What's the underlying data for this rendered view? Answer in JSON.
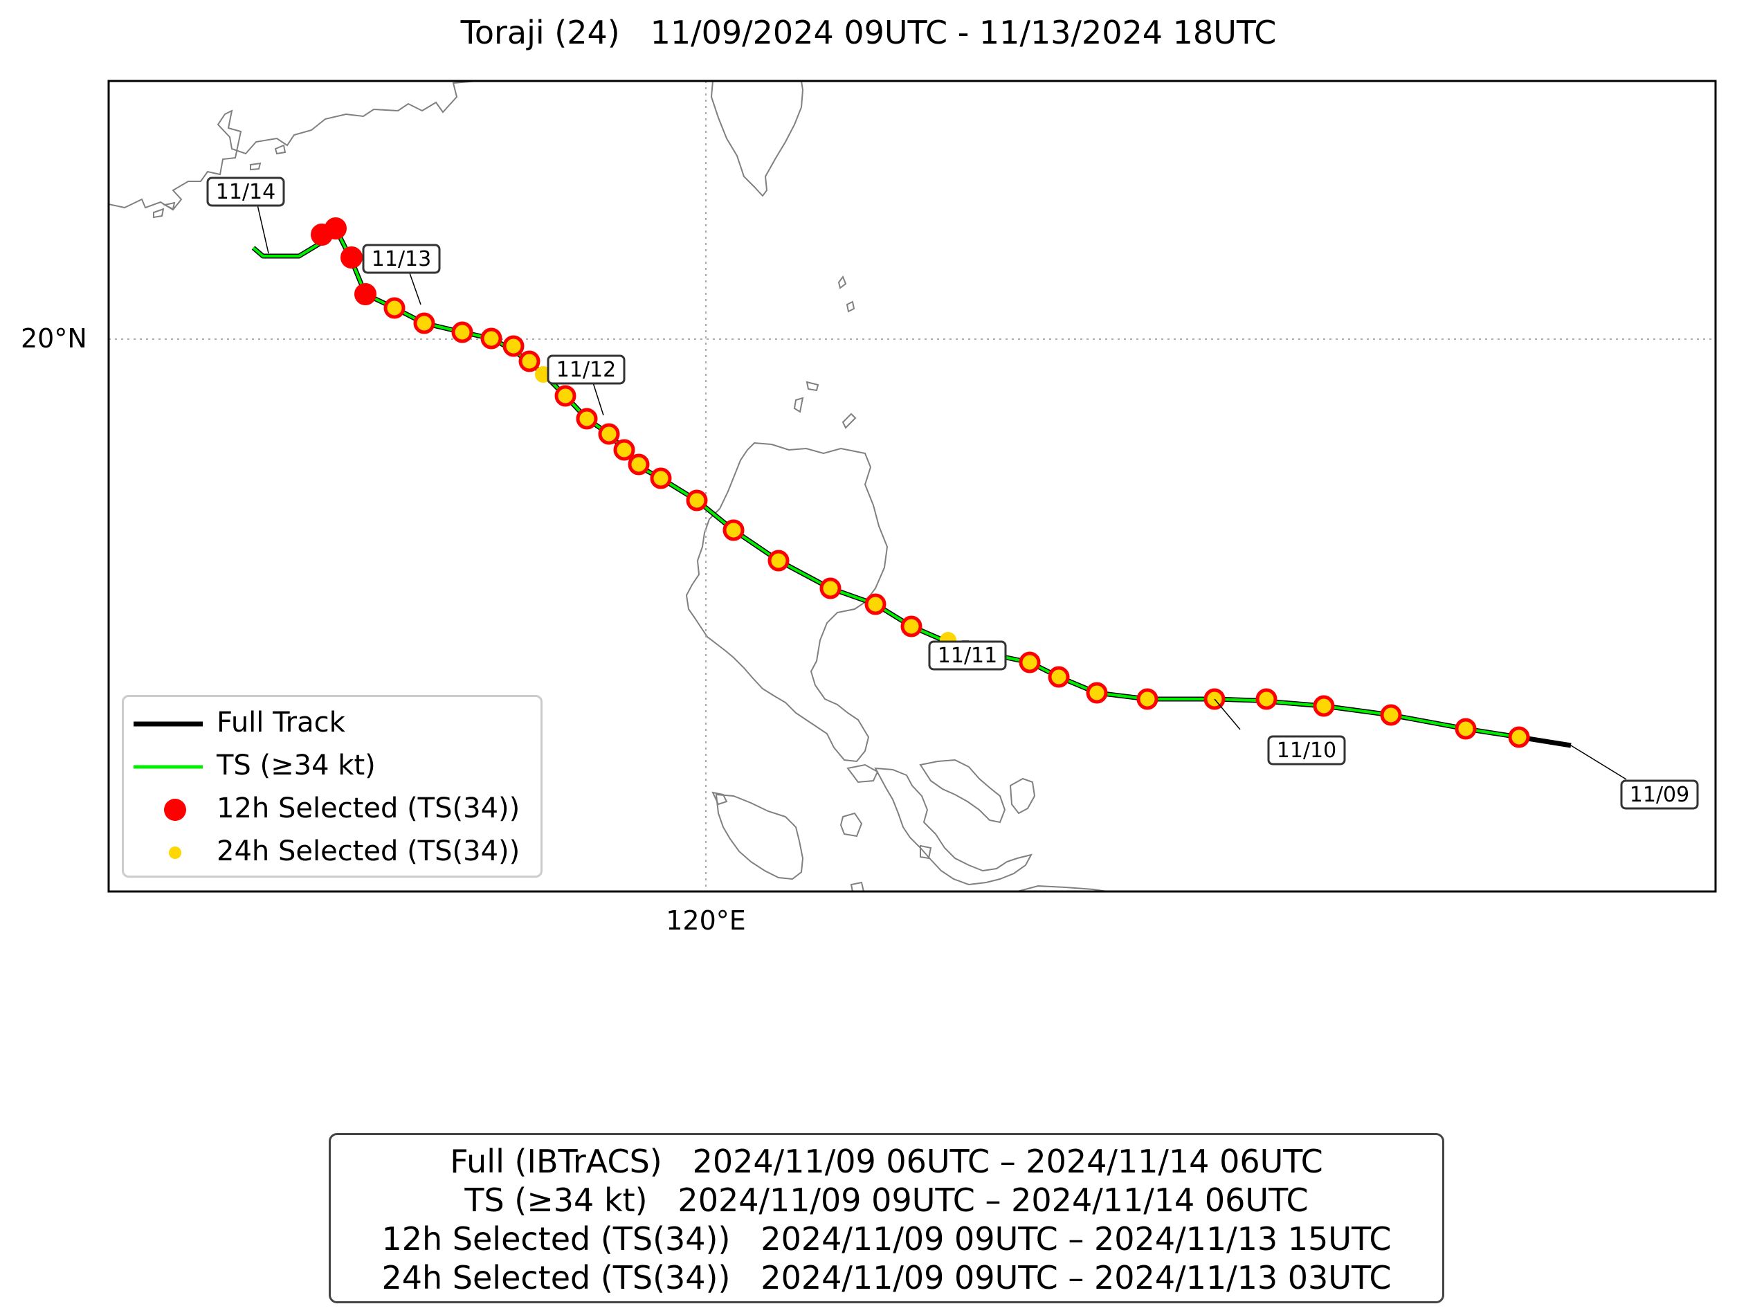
{
  "title": "Toraji (24)   11/09/2024 09UTC - 11/13/2024 18UTC",
  "axes": {
    "lat_label": "20°N",
    "lon_label": "120°E"
  },
  "legend": {
    "full_track": "Full Track",
    "ts": "TS (≥34 kt)",
    "sel12": "12h Selected (TS(34))",
    "sel24": "24h Selected (TS(34))"
  },
  "date_labels": [
    "11/14",
    "11/13",
    "11/12",
    "11/11",
    "11/10",
    "11/09"
  ],
  "summary": [
    "Full (IBTrACS)   2024/11/09 06UTC – 2024/11/14 06UTC",
    "TS (≥34 kt)   2024/11/09 09UTC – 2024/11/14 06UTC",
    "12h Selected (TS(34))   2024/11/09 09UTC – 2024/11/13 15UTC",
    "24h Selected (TS(34))   2024/11/09 09UTC – 2024/11/13 03UTC"
  ],
  "colors": {
    "full_track": "#000000",
    "ts_track": "#00ee00",
    "sel12": "#ff0000",
    "sel24": "#ffd700",
    "coast": "#808080"
  }
}
